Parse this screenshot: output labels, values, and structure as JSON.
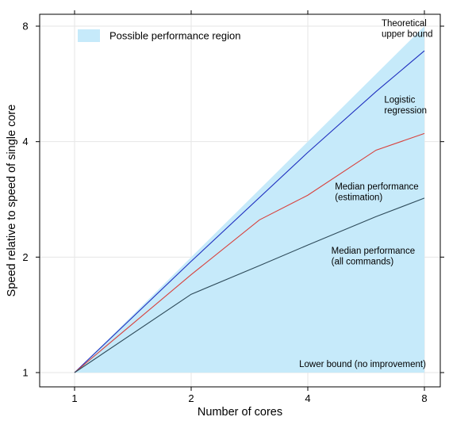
{
  "chart_data": {
    "type": "line",
    "xlabel": "Number of cores",
    "ylabel": "Speed relative to speed of single core",
    "x_scale": "log2",
    "y_scale": "log2",
    "xlim": [
      1,
      8
    ],
    "ylim": [
      1,
      8
    ],
    "x_ticks": [
      "1",
      "2",
      "4",
      "8"
    ],
    "y_ticks": [
      "1",
      "2",
      "4",
      "8"
    ],
    "grid": true,
    "legend": {
      "placement": "top-left",
      "entries": [
        {
          "label": "Possible performance region",
          "color": "#c6eafa"
        }
      ]
    },
    "region": {
      "name": "Possible performance region",
      "color": "#c6eafa",
      "x": [
        1,
        8
      ],
      "lower": [
        1,
        1
      ],
      "upper": [
        1,
        8
      ]
    },
    "series": [
      {
        "label": "Logistic regression",
        "color": "#1f2fbf",
        "x": [
          1,
          2,
          4,
          6,
          8
        ],
        "y": [
          1,
          1.95,
          3.75,
          5.4,
          6.9
        ]
      },
      {
        "label": "Median performance (estimation)",
        "color": "#d8413c",
        "x": [
          1,
          2,
          3,
          4,
          6,
          8
        ],
        "y": [
          1,
          1.8,
          2.5,
          2.9,
          3.8,
          4.2
        ]
      },
      {
        "label": "Median performance (all commands)",
        "color": "#2e4b5a",
        "x": [
          1,
          2,
          3,
          4,
          6,
          8
        ],
        "y": [
          1,
          1.6,
          1.9,
          2.15,
          2.55,
          2.85
        ]
      }
    ],
    "annotations": [
      {
        "lines": [
          "Theoretical",
          "upper bound"
        ],
        "x": 6.2,
        "y": 8.0
      },
      {
        "lines": [
          "Logistic",
          "regression"
        ],
        "x": 6.3,
        "y": 5.05
      },
      {
        "lines": [
          "Median performance",
          "(estimation)"
        ],
        "x": 4.7,
        "y": 3.0
      },
      {
        "lines": [
          "Median performance",
          "(all commands)"
        ],
        "x": 4.6,
        "y": 2.04
      },
      {
        "lines": [
          "Lower bound (no improvement)"
        ],
        "x": 3.8,
        "y": 1.035
      }
    ]
  }
}
